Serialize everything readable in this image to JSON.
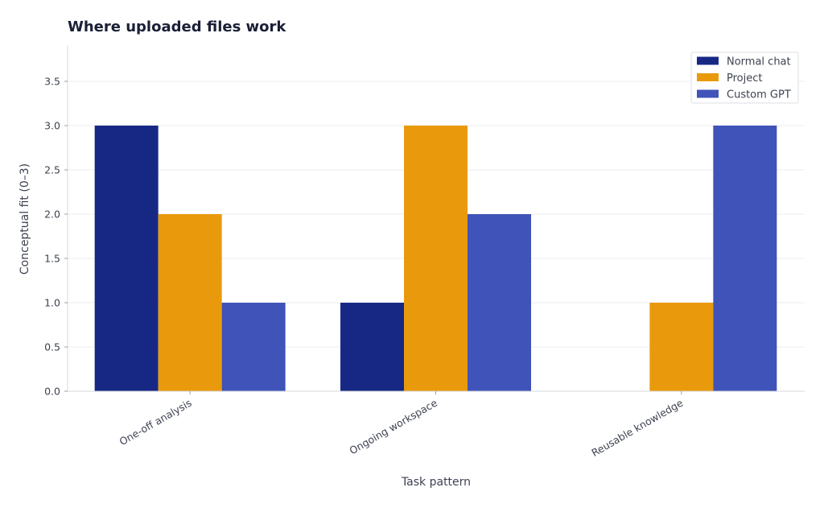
{
  "chart_data": {
    "type": "bar",
    "title": "Where uploaded files work",
    "xlabel": "Task pattern",
    "ylabel": "Conceptual fit (0–3)",
    "categories": [
      "One-off analysis",
      "Ongoing workspace",
      "Reusable knowledge"
    ],
    "series": [
      {
        "name": "Normal chat",
        "values": [
          3,
          1,
          0
        ],
        "color": "#172884"
      },
      {
        "name": "Project",
        "values": [
          2,
          3,
          1
        ],
        "color": "#e99a0c"
      },
      {
        "name": "Custom GPT",
        "values": [
          1,
          2,
          3
        ],
        "color": "#3f53b8"
      }
    ],
    "ylim": [
      0,
      3.9
    ],
    "yticks": [
      "0.0",
      "0.5",
      "1.0",
      "1.5",
      "2.0",
      "2.5",
      "3.0",
      "3.5"
    ],
    "grid": true,
    "legend_position": "top-right"
  }
}
